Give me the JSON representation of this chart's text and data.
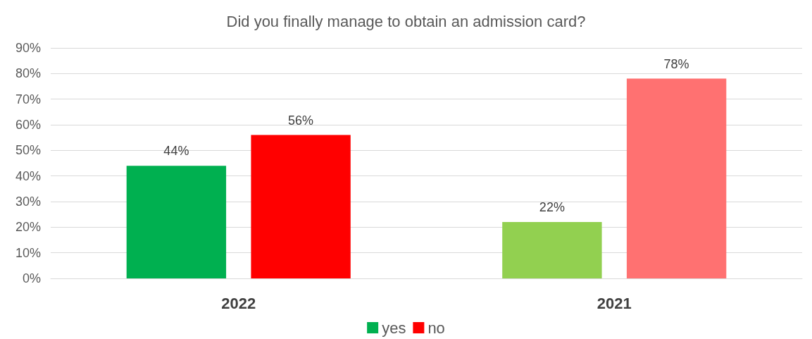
{
  "chart_data": {
    "type": "bar",
    "title": "Did you finally manage to obtain an admission card?",
    "categories": [
      "2022",
      "2021"
    ],
    "series": [
      {
        "name": "yes",
        "color": "#00b050",
        "colors": [
          "#00b050",
          "#92d050"
        ],
        "values": [
          44,
          22
        ],
        "value_labels": [
          "44%",
          "22%"
        ]
      },
      {
        "name": "no",
        "color": "#ff0000",
        "colors": [
          "#ff0000",
          "#ff7171"
        ],
        "values": [
          56,
          78
        ],
        "value_labels": [
          "56%",
          "78%"
        ]
      }
    ],
    "ylim": [
      0,
      90
    ],
    "yticks": [
      {
        "value": 0,
        "label": "0%"
      },
      {
        "value": 10,
        "label": "10%"
      },
      {
        "value": 20,
        "label": "20%"
      },
      {
        "value": 30,
        "label": "30%"
      },
      {
        "value": 40,
        "label": "40%"
      },
      {
        "value": 50,
        "label": "50%"
      },
      {
        "value": 60,
        "label": "60%"
      },
      {
        "value": 70,
        "label": "70%"
      },
      {
        "value": 80,
        "label": "80%"
      },
      {
        "value": 90,
        "label": "90%"
      }
    ],
    "grid": "y",
    "legend": "bottom"
  }
}
